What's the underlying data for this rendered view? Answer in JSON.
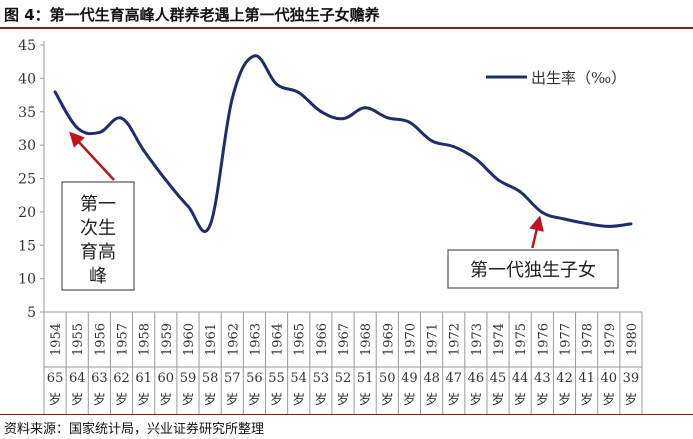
{
  "figure_title": "图 4：第一代生育高峰人群养老遇上第一代独生子女赡养",
  "source": "资料来源：国家统计局，兴业证券研究所整理",
  "chart_data": {
    "type": "line",
    "title": "",
    "xlabel": "",
    "ylabel": "",
    "ylim": [
      5,
      45
    ],
    "yticks": [
      5,
      10,
      15,
      20,
      25,
      30,
      35,
      40,
      45
    ],
    "grid": false,
    "legend_position": "top-right",
    "series": [
      {
        "name": "出生率（‰）",
        "color": "#1f2d6b",
        "x": [
          1954,
          1955,
          1956,
          1957,
          1958,
          1959,
          1960,
          1961,
          1962,
          1963,
          1964,
          1965,
          1966,
          1967,
          1968,
          1969,
          1970,
          1971,
          1972,
          1973,
          1974,
          1975,
          1976,
          1977,
          1978,
          1979,
          1980
        ],
        "values": [
          37.97,
          32.6,
          31.9,
          34.03,
          29.22,
          24.78,
          20.86,
          18.02,
          37.01,
          43.37,
          39.14,
          37.88,
          35.05,
          33.96,
          35.59,
          34.11,
          33.43,
          30.65,
          29.77,
          27.93,
          24.82,
          23.01,
          19.91,
          18.93,
          18.25,
          17.82,
          18.21
        ]
      }
    ],
    "categories": [
      "1954",
      "1955",
      "1956",
      "1957",
      "1958",
      "1959",
      "1960",
      "1961",
      "1962",
      "1963",
      "1964",
      "1965",
      "1966",
      "1967",
      "1968",
      "1969",
      "1970",
      "1971",
      "1972",
      "1973",
      "1974",
      "1975",
      "1976",
      "1977",
      "1978",
      "1979",
      "1980"
    ],
    "ages": [
      "65岁",
      "64岁",
      "63岁",
      "62岁",
      "61岁",
      "60岁",
      "59岁",
      "58岁",
      "57岁",
      "56岁",
      "55岁",
      "54岁",
      "53岁",
      "52岁",
      "51岁",
      "50岁",
      "49岁",
      "48岁",
      "47岁",
      "46岁",
      "45岁",
      "44岁",
      "43岁",
      "42岁",
      "41岁",
      "40岁",
      "39岁"
    ],
    "annotations": [
      {
        "text": "第一次生育高峰",
        "lines": [
          "第一",
          "次生",
          "育高",
          "峰"
        ],
        "points_to_year": 1955,
        "arrow_color": "#c0141c"
      },
      {
        "text": "第一代独生子女",
        "points_to_year": 1976,
        "arrow_color": "#c0141c"
      }
    ]
  }
}
